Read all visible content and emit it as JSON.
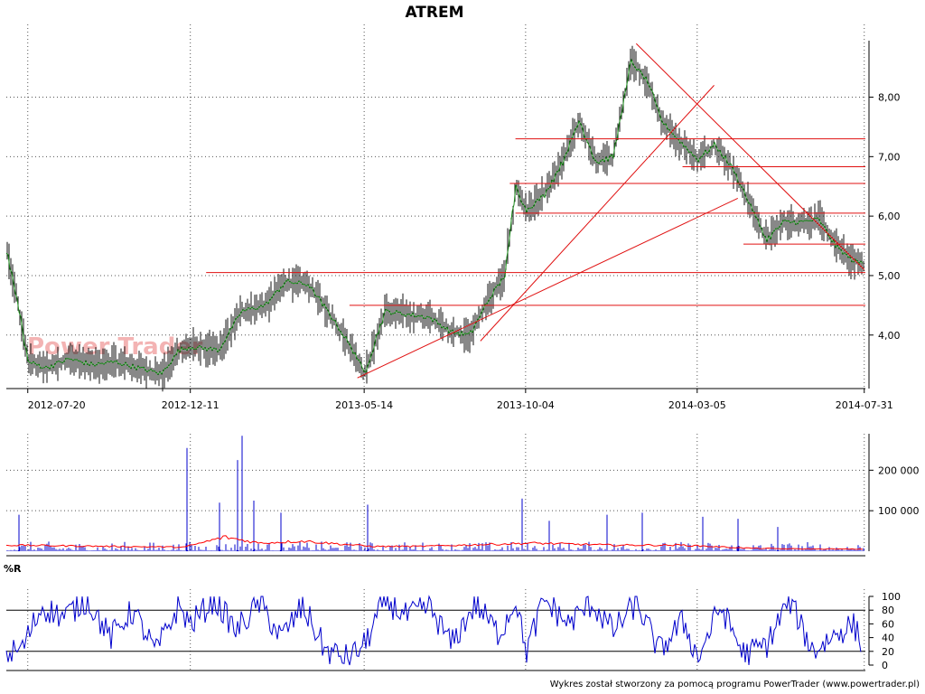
{
  "chart_data": [
    {
      "type": "line",
      "panel": "price",
      "title": "ATREM",
      "watermark": "Power Trader",
      "x_ticks": [
        "2012-07-20",
        "2012-12-11",
        "2013-05-14",
        "2013-10-04",
        "2014-03-05",
        "2014-07-31"
      ],
      "y_ticks": [
        "4,00",
        "5,00",
        "6,00",
        "7,00",
        "8,00"
      ],
      "ylim": [
        3.1,
        8.95
      ],
      "xlim": [
        "2012-07-01",
        "2014-08-01"
      ],
      "grid": true,
      "colors": {
        "price_line": "#1a8a1a",
        "bars": "#000000",
        "trendlines": "#e01010"
      },
      "series": [
        {
          "name": "",
          "x": [
            "2012-07-01",
            "2012-07-10",
            "2012-07-20",
            "2012-08-05",
            "2012-08-25",
            "2012-09-15",
            "2012-10-05",
            "2012-10-25",
            "2012-11-15",
            "2012-12-01",
            "2012-12-11",
            "2013-01-05",
            "2013-01-25",
            "2013-02-15",
            "2013-03-05",
            "2013-03-25",
            "2013-04-15",
            "2013-05-05",
            "2013-05-14",
            "2013-06-01",
            "2013-06-20",
            "2013-07-10",
            "2013-07-30",
            "2013-08-15",
            "2013-09-01",
            "2013-09-15",
            "2013-09-25",
            "2013-10-04",
            "2013-10-20",
            "2013-11-05",
            "2013-11-20",
            "2013-12-05",
            "2013-12-20",
            "2014-01-05",
            "2014-01-20",
            "2014-02-01",
            "2014-02-15",
            "2014-03-05",
            "2014-03-20",
            "2014-04-05",
            "2014-04-20",
            "2014-05-05",
            "2014-05-20",
            "2014-06-05",
            "2014-06-20",
            "2014-07-05",
            "2014-07-20",
            "2014-07-31"
          ],
          "y": [
            5.4,
            4.6,
            3.55,
            3.45,
            3.6,
            3.5,
            3.55,
            3.45,
            3.35,
            3.75,
            3.8,
            3.75,
            4.4,
            4.5,
            4.9,
            4.85,
            4.3,
            3.7,
            3.35,
            4.4,
            4.35,
            4.3,
            4.05,
            4.0,
            4.6,
            5.0,
            6.5,
            6.1,
            6.35,
            6.9,
            7.6,
            6.9,
            7.0,
            8.6,
            8.25,
            7.6,
            7.3,
            6.95,
            7.2,
            6.8,
            6.2,
            5.6,
            5.9,
            5.9,
            5.95,
            5.5,
            5.25,
            5.2
          ]
        }
      ],
      "hlines": [
        5.05,
        4.5,
        6.05,
        6.55,
        6.83,
        7.3,
        5.53
      ],
      "trendlines": [
        {
          "from": [
            "2013-05-08",
            3.28
          ],
          "to": [
            "2014-04-10",
            6.3
          ]
        },
        {
          "from": [
            "2013-08-25",
            3.9
          ],
          "to": [
            "2014-03-20",
            8.2
          ]
        },
        {
          "from": [
            "2014-01-10",
            8.9
          ],
          "to": [
            "2014-07-31",
            5.1
          ]
        }
      ]
    },
    {
      "type": "bar",
      "panel": "volume",
      "y_ticks": [
        "100 000",
        "200 000"
      ],
      "ylim": [
        0,
        290000
      ],
      "colors": {
        "bars": "#0000cc",
        "average": "#ff0000"
      },
      "spikes": [
        {
          "x": "2012-07-12",
          "value": 90000
        },
        {
          "x": "2012-12-08",
          "value": 255000
        },
        {
          "x": "2013-01-06",
          "value": 120000
        },
        {
          "x": "2013-01-22",
          "value": 225000
        },
        {
          "x": "2013-01-26",
          "value": 285000
        },
        {
          "x": "2013-02-05",
          "value": 125000
        },
        {
          "x": "2013-03-01",
          "value": 95000
        },
        {
          "x": "2013-05-17",
          "value": 115000
        },
        {
          "x": "2013-10-01",
          "value": 130000
        },
        {
          "x": "2013-10-25",
          "value": 75000
        },
        {
          "x": "2013-12-15",
          "value": 90000
        },
        {
          "x": "2014-01-15",
          "value": 95000
        },
        {
          "x": "2014-03-10",
          "value": 85000
        },
        {
          "x": "2014-04-10",
          "value": 80000
        },
        {
          "x": "2014-05-15",
          "value": 60000
        }
      ],
      "average": {
        "x": [
          "2012-07-01",
          "2012-10-01",
          "2012-12-05",
          "2013-01-10",
          "2013-02-10",
          "2013-03-20",
          "2013-05-20",
          "2013-07-01",
          "2013-10-10",
          "2013-12-20",
          "2014-02-20",
          "2014-04-15",
          "2014-05-20",
          "2014-07-31"
        ],
        "y": [
          15000,
          12000,
          10000,
          35000,
          20000,
          25000,
          12000,
          12000,
          20000,
          15000,
          15000,
          8000,
          6000,
          5000
        ]
      }
    },
    {
      "type": "line",
      "panel": "williams",
      "label": "%R",
      "y_ticks": [
        "0",
        "20",
        "40",
        "60",
        "80",
        "100"
      ],
      "ylim": [
        0,
        100
      ],
      "hlines": [
        20,
        80
      ],
      "colors": {
        "line": "#0000cc",
        "levels": "#000000"
      },
      "series": [
        {
          "name": "",
          "x": [
            "2012-07-01",
            "2012-07-15",
            "2012-08-01",
            "2012-08-20",
            "2012-09-10",
            "2012-10-01",
            "2012-10-20",
            "2012-11-10",
            "2012-11-30",
            "2012-12-11",
            "2013-01-01",
            "2013-01-20",
            "2013-02-10",
            "2013-03-01",
            "2013-03-20",
            "2013-04-10",
            "2013-04-30",
            "2013-05-14",
            "2013-06-01",
            "2013-06-20",
            "2013-07-10",
            "2013-07-30",
            "2013-08-20",
            "2013-09-10",
            "2013-09-25",
            "2013-10-04",
            "2013-10-20",
            "2013-11-10",
            "2013-12-01",
            "2013-12-20",
            "2014-01-10",
            "2014-01-30",
            "2014-02-20",
            "2014-03-05",
            "2014-03-25",
            "2014-04-15",
            "2014-05-05",
            "2014-05-25",
            "2014-06-15",
            "2014-07-05",
            "2014-07-20",
            "2014-07-31"
          ],
          "y": [
            15,
            25,
            85,
            70,
            95,
            40,
            80,
            20,
            85,
            60,
            95,
            50,
            90,
            40,
            85,
            20,
            10,
            30,
            95,
            70,
            85,
            30,
            90,
            45,
            95,
            20,
            95,
            60,
            90,
            50,
            90,
            20,
            65,
            10,
            85,
            15,
            30,
            95,
            20,
            45,
            60,
            25
          ]
        }
      ]
    }
  ],
  "footer": "Wykres został stworzony za pomocą programu PowerTrader (www.powertrader.pl)"
}
